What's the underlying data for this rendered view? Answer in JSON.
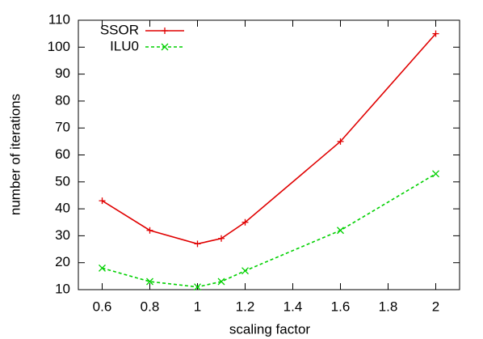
{
  "chart_data": {
    "type": "line",
    "x_label": "scaling factor",
    "y_label": "number of iterations",
    "x": [
      0.6,
      0.8,
      1,
      1.1,
      1.2,
      1.6,
      2
    ],
    "series": [
      {
        "name": "SSOR",
        "color": "#e00000",
        "dash": false,
        "marker": "plus",
        "values": [
          43,
          32,
          27,
          29,
          35,
          65,
          105
        ]
      },
      {
        "name": "ILU0",
        "color": "#00d000",
        "dash": true,
        "marker": "cross",
        "values": [
          18,
          13,
          11,
          13,
          17,
          32,
          53
        ]
      }
    ],
    "xlim": [
      0.5,
      2.1
    ],
    "xticks": [
      0.6,
      0.8,
      1,
      1.2,
      1.4,
      1.6,
      1.8,
      2
    ],
    "ylim": [
      10,
      110
    ],
    "yticks": [
      10,
      20,
      30,
      40,
      50,
      60,
      70,
      80,
      90,
      100,
      110
    ],
    "legend": "top-left",
    "grid": false
  }
}
